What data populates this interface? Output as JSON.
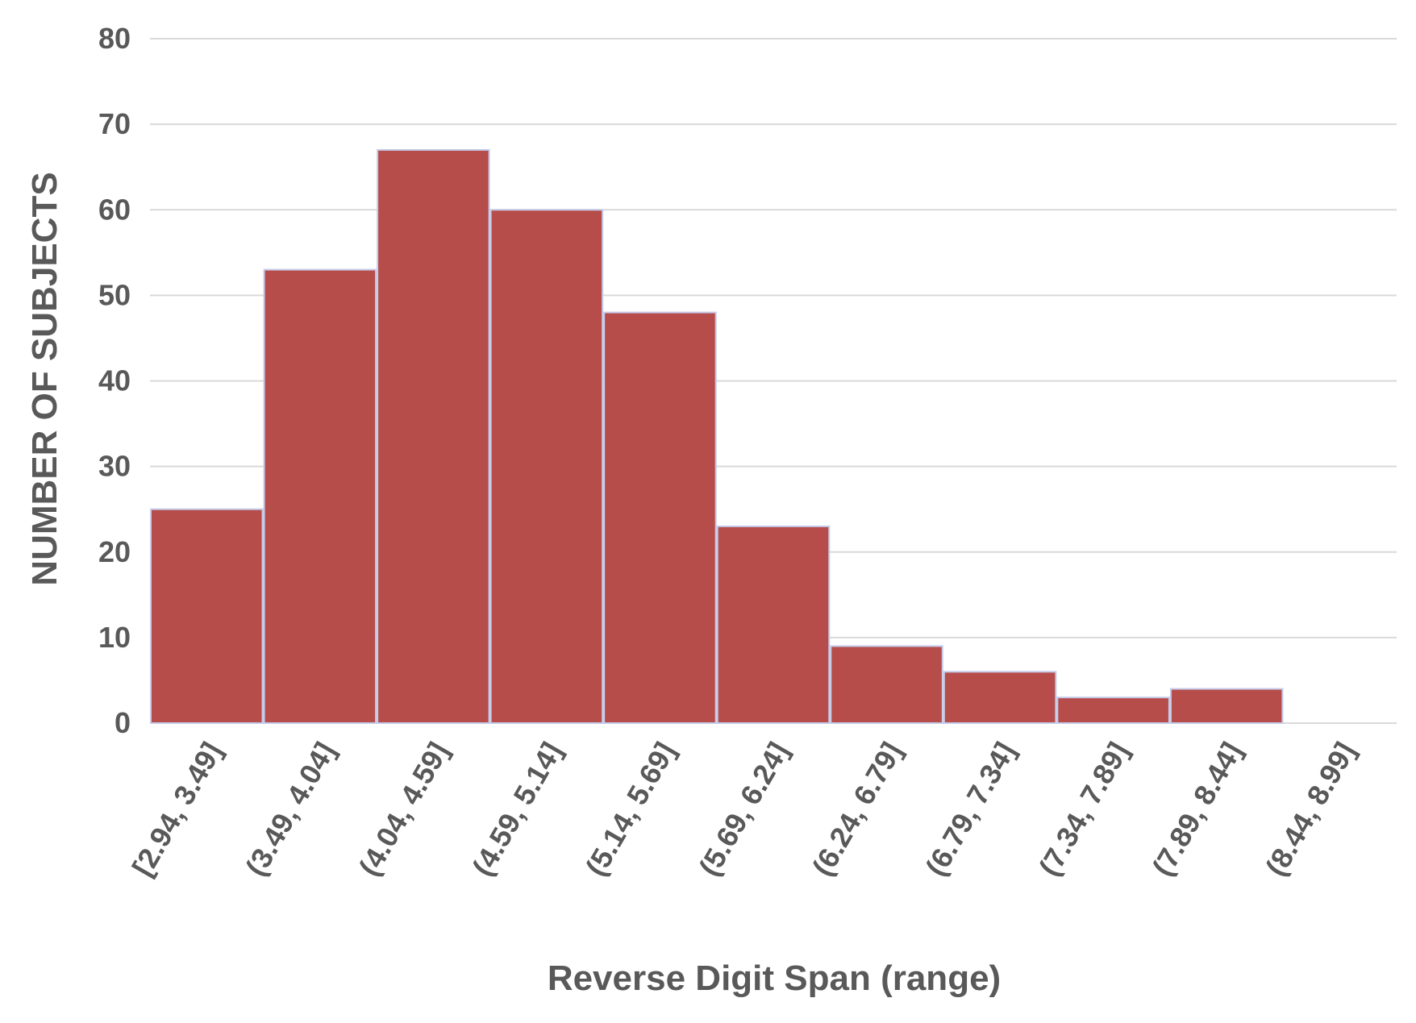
{
  "chart_data": {
    "type": "bar",
    "title": "",
    "xlabel": "Reverse Digit Span (range)",
    "ylabel": "NUMBER OF SUBJECTS",
    "categories": [
      "[2.94, 3.49]",
      "(3.49, 4.04]",
      "(4.04, 4.59]",
      "(4.59, 5.14]",
      "(5.14, 5.69]",
      "(5.69, 6.24]",
      "(6.24, 6.79]",
      "(6.79, 7.34]",
      "(7.34, 7.89]",
      "(7.89, 8.44]",
      "(8.44, 8.99]"
    ],
    "values": [
      25,
      53,
      67,
      60,
      48,
      23,
      9,
      6,
      3,
      4,
      0
    ],
    "ylim": [
      0,
      80
    ],
    "yticks": [
      0,
      10,
      20,
      30,
      40,
      50,
      60,
      70,
      80
    ],
    "grid": true,
    "legend": "none",
    "bar_color": "#b64d4b"
  }
}
